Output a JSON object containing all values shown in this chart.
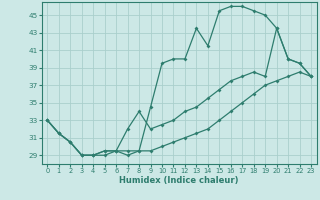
{
  "xlabel": "Humidex (Indice chaleur)",
  "bg_color": "#cce8e6",
  "line_color": "#2e7d6e",
  "grid_color": "#aacfcc",
  "xlim": [
    -0.5,
    23.5
  ],
  "ylim": [
    28,
    46.5
  ],
  "yticks": [
    29,
    31,
    33,
    35,
    37,
    39,
    41,
    43,
    45
  ],
  "xticks": [
    0,
    1,
    2,
    3,
    4,
    5,
    6,
    7,
    8,
    9,
    10,
    11,
    12,
    13,
    14,
    15,
    16,
    17,
    18,
    19,
    20,
    21,
    22,
    23
  ],
  "line1_x": [
    0,
    1,
    2,
    3,
    4,
    5,
    6,
    7,
    8,
    9,
    10,
    11,
    12,
    13,
    14,
    15,
    16,
    17,
    18,
    19,
    20,
    21,
    22,
    23
  ],
  "line1_y": [
    33,
    31.5,
    30.5,
    29,
    29,
    29,
    29.5,
    29,
    29.5,
    34.5,
    39.5,
    40,
    40,
    43.5,
    41.5,
    45.5,
    46,
    46,
    45.5,
    45,
    43.5,
    40,
    39.5,
    38
  ],
  "line2_x": [
    0,
    1,
    2,
    3,
    4,
    5,
    6,
    7,
    8,
    9,
    10,
    11,
    12,
    13,
    14,
    15,
    16,
    17,
    18,
    19,
    20,
    21,
    22,
    23
  ],
  "line2_y": [
    33,
    31.5,
    30.5,
    29,
    29,
    29.5,
    29.5,
    32,
    34,
    32,
    32.5,
    33,
    34,
    34.5,
    35.5,
    36.5,
    37.5,
    38,
    38.5,
    38,
    43.5,
    40,
    39.5,
    38
  ],
  "line3_x": [
    0,
    1,
    2,
    3,
    4,
    5,
    6,
    7,
    8,
    9,
    10,
    11,
    12,
    13,
    14,
    15,
    16,
    17,
    18,
    19,
    20,
    21,
    22,
    23
  ],
  "line3_y": [
    33,
    31.5,
    30.5,
    29,
    29,
    29.5,
    29.5,
    29.5,
    29.5,
    29.5,
    30,
    30.5,
    31,
    31.5,
    32,
    33,
    34,
    35,
    36,
    37,
    37.5,
    38,
    38.5,
    38
  ]
}
